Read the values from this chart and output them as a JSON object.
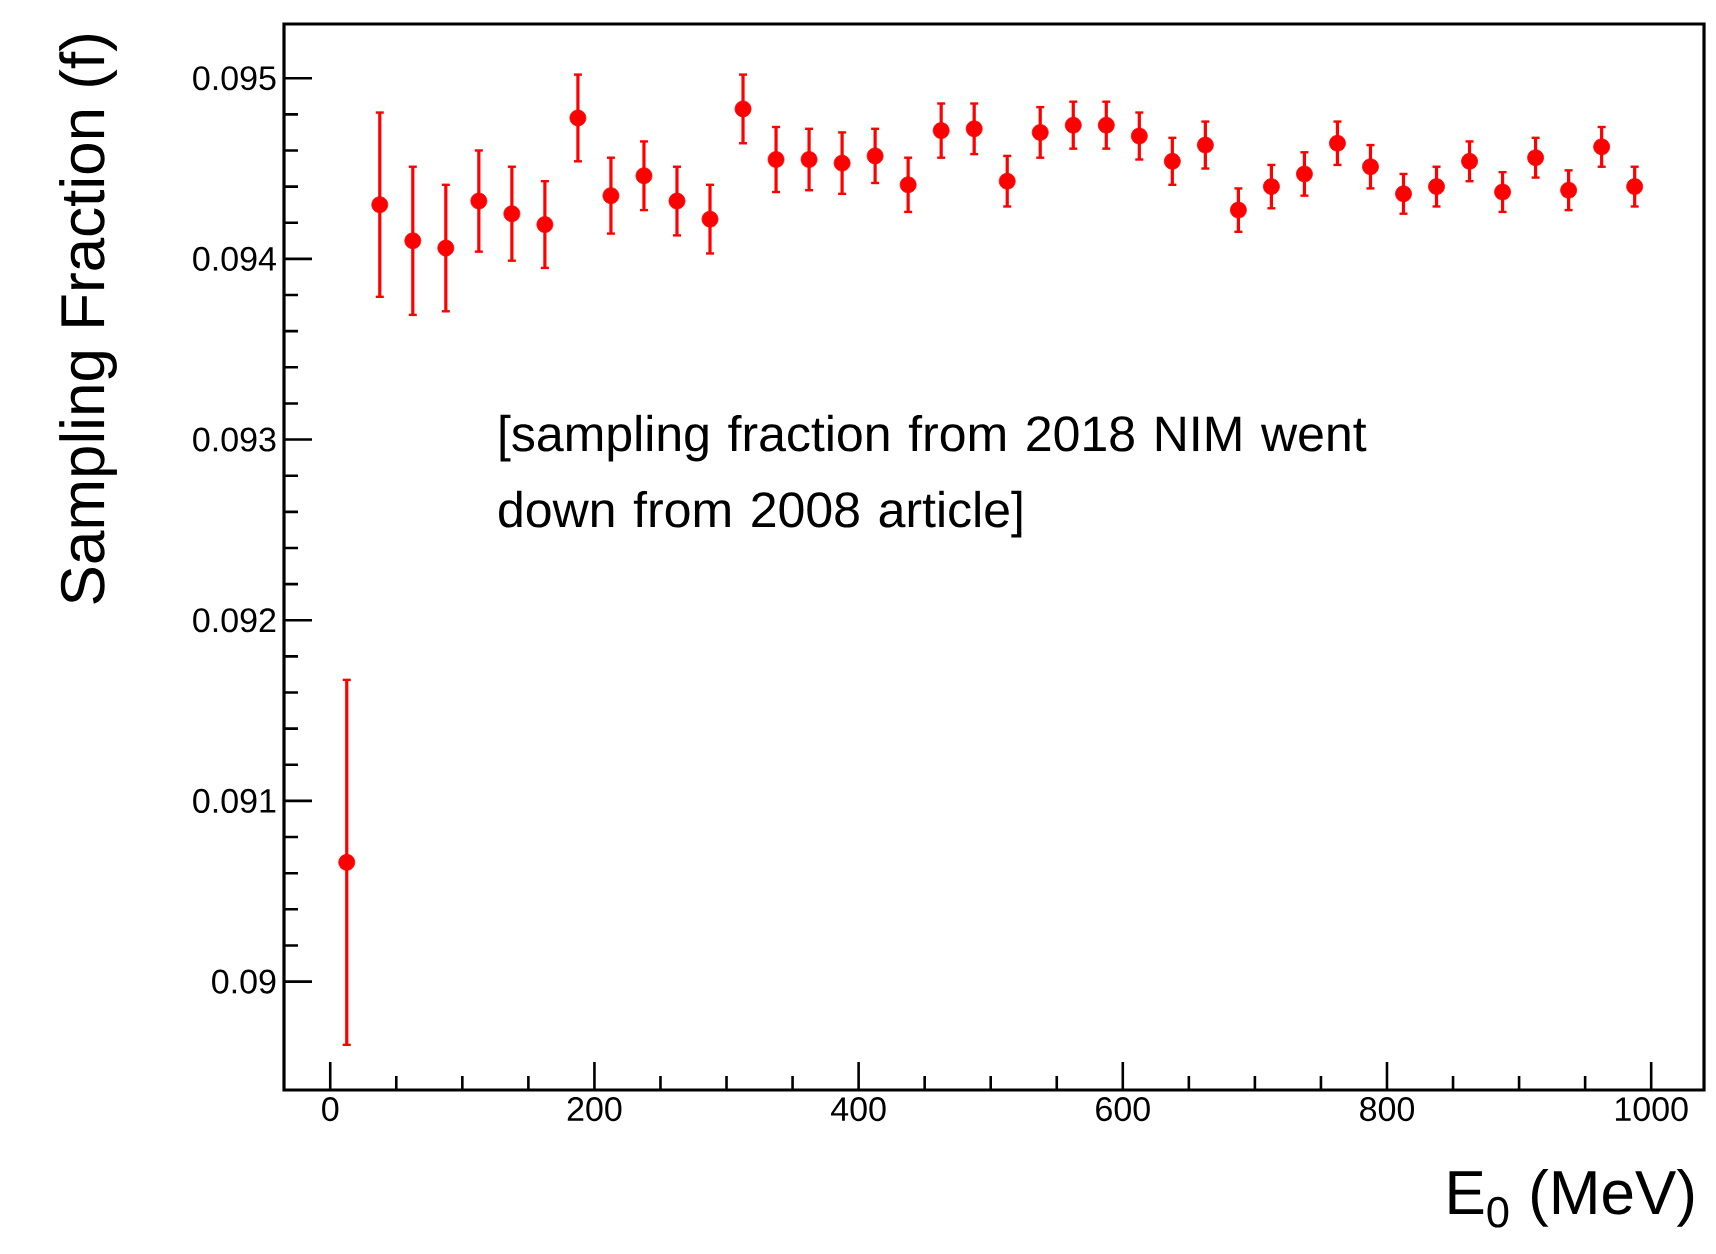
{
  "chart_data": {
    "type": "scatter",
    "xlabel": "E$_{0}$ (MeV)",
    "ylabel": "Sampling Fraction (f)",
    "annotations": [
      "[sampling fraction from 2018 NIM went down from 2008 article]"
    ],
    "x": [
      12.5,
      37.5,
      62.5,
      87.5,
      112.5,
      137.5,
      162.5,
      187.5,
      212.5,
      237.5,
      262.5,
      287.5,
      312.5,
      337.5,
      362.5,
      387.5,
      412.5,
      437.5,
      462.5,
      487.5,
      512.5,
      537.5,
      562.5,
      587.5,
      612.5,
      637.5,
      662.5,
      687.5,
      712.5,
      737.5,
      762.5,
      787.5,
      812.5,
      837.5,
      862.5,
      887.5,
      912.5,
      937.5,
      962.5,
      987.5
    ],
    "values": [
      0.09066,
      0.0943,
      0.0941,
      0.09406,
      0.09432,
      0.09425,
      0.09419,
      0.09478,
      0.09435,
      0.09446,
      0.09432,
      0.09422,
      0.09483,
      0.09455,
      0.09455,
      0.09453,
      0.09457,
      0.09441,
      0.09471,
      0.09472,
      0.09443,
      0.0947,
      0.09474,
      0.09474,
      0.09468,
      0.09454,
      0.09463,
      0.09427,
      0.0944,
      0.09447,
      0.09464,
      0.09451,
      0.09436,
      0.0944,
      0.09454,
      0.09437,
      0.09456,
      0.09438,
      0.09462,
      0.0944
    ],
    "errors": [
      0.00101,
      0.00051,
      0.00041,
      0.00035,
      0.00028,
      0.00026,
      0.00024,
      0.00024,
      0.00021,
      0.00019,
      0.00019,
      0.00019,
      0.00019,
      0.00018,
      0.00017,
      0.00017,
      0.00015,
      0.00015,
      0.00015,
      0.00014,
      0.00014,
      0.00014,
      0.00013,
      0.00013,
      0.00013,
      0.00013,
      0.00013,
      0.00012,
      0.00012,
      0.00012,
      0.00012,
      0.00012,
      0.00011,
      0.00011,
      0.00011,
      0.00011,
      0.00011,
      0.00011,
      0.00011,
      0.00011
    ],
    "color": "#ff0000",
    "xlim": [
      -35,
      1040
    ],
    "ylim": [
      0.0894,
      0.0953
    ],
    "xticks": [
      0,
      200,
      400,
      600,
      800,
      1000
    ],
    "yticks": [
      0.09,
      0.091,
      0.092,
      0.093,
      0.094,
      0.095
    ],
    "grid": false
  }
}
